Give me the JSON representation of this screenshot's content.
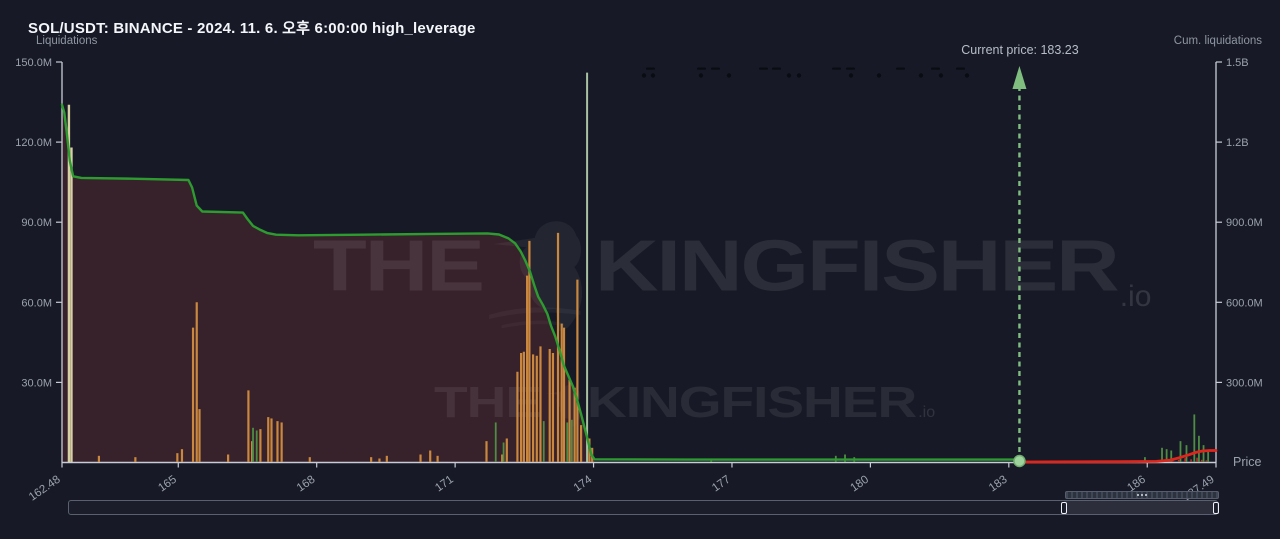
{
  "header": {
    "title": "SOL/USDT: BINANCE - 2024. 11. 6. 오후 6:00:00 high_leverage"
  },
  "annotations": {
    "current_price_label": "Current price: 183.23"
  },
  "watermark": {
    "the": "THE",
    "brand": "KINGFISHER",
    "suffix": ".io"
  },
  "colors": {
    "background": "#171a26",
    "cum_long_line": "#2d9b30",
    "cum_short_line": "#e0261c",
    "long_bar": "#c9873f",
    "short_bar": "#4f8c44",
    "highlight_bar": "#d6d0a4",
    "spike_bar": "#a9c2a0",
    "micro_red_bar": "#b5392c",
    "liquidation_area": "#37212a",
    "axis_line": "#c7ccd6",
    "tick_text": "#9aa1ae",
    "arrow": "#7fbe7f",
    "price_dot": "#9ed39e"
  },
  "chart_data": {
    "type": "bar+line",
    "title": "SOL/USDT: BINANCE - 2024. 11. 6. 오후 6:00:00 high_leverage",
    "current_price": 183.23,
    "x_axis": {
      "label": "Price",
      "min": 162.48,
      "max": 187.49,
      "ticks": [
        {
          "price": 162.48,
          "label": "162.48"
        },
        {
          "price": 165,
          "label": "165"
        },
        {
          "price": 168,
          "label": "168"
        },
        {
          "price": 171,
          "label": "171"
        },
        {
          "price": 174,
          "label": "174"
        },
        {
          "price": 177,
          "label": "177"
        },
        {
          "price": 180,
          "label": "180"
        },
        {
          "price": 183,
          "label": "183"
        },
        {
          "price": 186,
          "label": "186"
        },
        {
          "price": 187.49,
          "label": "187.49"
        }
      ]
    },
    "left_axis": {
      "label": "Liquidations",
      "max_m": 150,
      "ticks": [
        {
          "value_m": 150,
          "label": "150.0M"
        },
        {
          "value_m": 120,
          "label": "120.0M"
        },
        {
          "value_m": 90,
          "label": "90.0M"
        },
        {
          "value_m": 60,
          "label": "60.0M"
        },
        {
          "value_m": 30,
          "label": "30.0M"
        }
      ]
    },
    "right_axis": {
      "label": "Cum. liquidations",
      "max_m": 1500,
      "ticks": [
        {
          "value_m": 1500,
          "label": "1.5B"
        },
        {
          "value_m": 1200,
          "label": "1.2B"
        },
        {
          "value_m": 900,
          "label": "900.0M"
        },
        {
          "value_m": 600,
          "label": "600.0M"
        },
        {
          "value_m": 300,
          "label": "300.0M"
        }
      ]
    },
    "series": [
      {
        "name": "highlight-liquidation-bars",
        "type": "bar",
        "axis": "left",
        "color": "#d6d0a4",
        "width": 2.4,
        "points": [
          [
            162.63,
            134
          ],
          [
            162.685,
            118
          ]
        ]
      },
      {
        "name": "long-liquidation-bars",
        "type": "bar",
        "axis": "left",
        "color": "#c9873f",
        "width": 2.2,
        "points": [
          [
            163.28,
            2.5
          ],
          [
            164.07,
            2
          ],
          [
            164.98,
            3.5
          ],
          [
            165.08,
            5
          ],
          [
            165.32,
            50.5
          ],
          [
            165.4,
            60
          ],
          [
            165.46,
            20
          ],
          [
            166.08,
            3
          ],
          [
            166.52,
            27
          ],
          [
            166.6,
            8
          ],
          [
            166.78,
            12.5
          ],
          [
            166.95,
            17
          ],
          [
            167.02,
            16.5
          ],
          [
            167.15,
            15.5
          ],
          [
            167.24,
            15
          ],
          [
            167.85,
            2
          ],
          [
            169.18,
            2
          ],
          [
            169.36,
            1.5
          ],
          [
            169.52,
            2.5
          ],
          [
            170.25,
            3
          ],
          [
            170.46,
            4.5
          ],
          [
            170.62,
            2.5
          ],
          [
            171.68,
            8
          ],
          [
            172.02,
            3
          ],
          [
            172.12,
            9
          ],
          [
            172.35,
            34
          ],
          [
            172.43,
            41
          ],
          [
            172.49,
            41.5
          ],
          [
            172.56,
            70
          ],
          [
            172.61,
            83
          ],
          [
            172.69,
            40.5
          ],
          [
            172.77,
            40
          ],
          [
            172.85,
            43.5
          ],
          [
            173.05,
            42.5
          ],
          [
            173.12,
            41
          ],
          [
            173.23,
            86
          ],
          [
            173.31,
            52
          ],
          [
            173.36,
            50.5
          ],
          [
            173.48,
            31
          ],
          [
            173.59,
            28
          ],
          [
            173.65,
            68.5
          ],
          [
            173.73,
            14
          ],
          [
            173.91,
            9
          ],
          [
            173.97,
            5.5
          ]
        ]
      },
      {
        "name": "short-liquidation-bars",
        "type": "bar",
        "axis": "left",
        "color": "#4f8c44",
        "width": 1.8,
        "points": [
          [
            166.62,
            13
          ],
          [
            166.7,
            12
          ],
          [
            171.88,
            15
          ],
          [
            172.05,
            7.5
          ],
          [
            172.92,
            15.5
          ],
          [
            173.43,
            15
          ],
          [
            173.53,
            16
          ],
          [
            176.55,
            1
          ],
          [
            179.25,
            2.5
          ],
          [
            179.45,
            3
          ],
          [
            179.65,
            2
          ],
          [
            185.95,
            2
          ],
          [
            186.32,
            5.5
          ],
          [
            186.42,
            5
          ],
          [
            186.52,
            4.5
          ],
          [
            186.72,
            8
          ],
          [
            186.85,
            6.5
          ],
          [
            187.02,
            18
          ],
          [
            187.12,
            10
          ],
          [
            187.22,
            6.5
          ],
          [
            187.32,
            4
          ]
        ]
      },
      {
        "name": "micro-red-bars",
        "type": "bar",
        "axis": "left",
        "color": "#b5392c",
        "width": 1.5,
        "points": [
          [
            186.55,
            1.3
          ],
          [
            186.68,
            1
          ],
          [
            186.82,
            1.6
          ],
          [
            186.95,
            1.2
          ],
          [
            187.08,
            1.8
          ],
          [
            187.18,
            1
          ],
          [
            187.28,
            0.8
          ]
        ]
      },
      {
        "name": "price-spike-bar",
        "type": "bar",
        "axis": "left",
        "color": "#a9c2a0",
        "width": 2,
        "points": [
          [
            173.86,
            146
          ]
        ]
      },
      {
        "name": "cumulative-long-liquidations",
        "type": "line",
        "axis": "right",
        "color": "#2d9b30",
        "width": 2.4,
        "area": true,
        "area_color": "#37212a",
        "area_end_price": 174.02,
        "points": [
          [
            162.48,
            1340
          ],
          [
            162.53,
            1310
          ],
          [
            162.58,
            1240
          ],
          [
            162.65,
            1130
          ],
          [
            162.72,
            1072
          ],
          [
            162.9,
            1066
          ],
          [
            164.0,
            1063
          ],
          [
            165.22,
            1058
          ],
          [
            165.3,
            1030
          ],
          [
            165.4,
            962
          ],
          [
            165.52,
            940
          ],
          [
            166.4,
            936
          ],
          [
            166.5,
            912
          ],
          [
            166.62,
            886
          ],
          [
            166.78,
            871
          ],
          [
            166.92,
            860
          ],
          [
            167.12,
            853
          ],
          [
            167.6,
            851
          ],
          [
            169.0,
            853
          ],
          [
            170.5,
            856
          ],
          [
            171.7,
            858
          ],
          [
            171.95,
            854
          ],
          [
            172.15,
            840
          ],
          [
            172.3,
            821
          ],
          [
            172.42,
            791
          ],
          [
            172.52,
            756
          ],
          [
            172.62,
            716
          ],
          [
            172.72,
            661
          ],
          [
            172.8,
            621
          ],
          [
            172.9,
            591
          ],
          [
            173.0,
            556
          ],
          [
            173.08,
            511
          ],
          [
            173.17,
            471
          ],
          [
            173.27,
            416
          ],
          [
            173.35,
            366
          ],
          [
            173.45,
            326
          ],
          [
            173.55,
            286
          ],
          [
            173.65,
            231
          ],
          [
            173.73,
            181
          ],
          [
            173.82,
            121
          ],
          [
            173.88,
            81
          ],
          [
            173.95,
            31
          ],
          [
            174.02,
            12
          ],
          [
            176.0,
            11
          ],
          [
            180.0,
            11
          ],
          [
            183.23,
            11
          ]
        ]
      },
      {
        "name": "cumulative-short-liquidations",
        "type": "line",
        "axis": "right",
        "color": "#e0261c",
        "width": 2.8,
        "points": [
          [
            183.23,
            2
          ],
          [
            185.5,
            3
          ],
          [
            186.2,
            4
          ],
          [
            186.5,
            9
          ],
          [
            186.7,
            18
          ],
          [
            186.9,
            29
          ],
          [
            187.05,
            38
          ],
          [
            187.2,
            43
          ],
          [
            187.35,
            45
          ],
          [
            187.49,
            45
          ]
        ]
      }
    ]
  }
}
